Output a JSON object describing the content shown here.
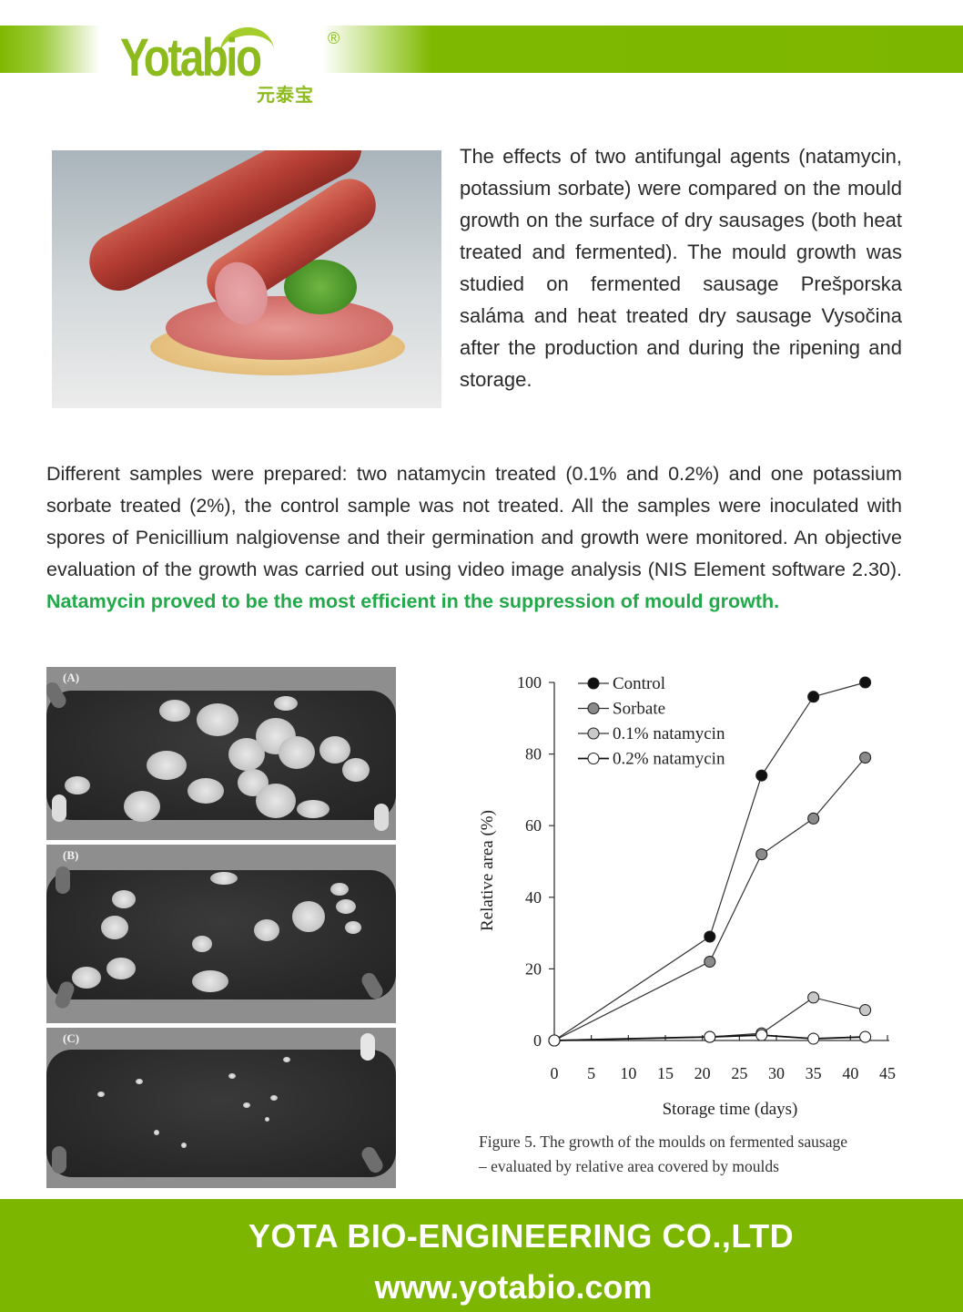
{
  "header": {
    "brand_name": "Yotabio",
    "brand_registered_mark": "®",
    "brand_chinese": "元泰宝",
    "brand_color": "#7db600"
  },
  "intro": {
    "text": "The effects of two antifungal agents (natamycin, potassium sorbate) were compared on the mould growth on the surface of dry sausages (both heat treated and fermented). The mould growth was studied on fermented sausage Prešporska saláma and heat treated dry sausage Vysočina after the production and during the ripening and storage."
  },
  "body": {
    "text": "Different samples were prepared: two natamycin treated (0.1% and 0.2%) and one potassium sorbate treated (2%), the control sample was not treated. All the samples were inoculated with spores of Penicillium nalgiovense and their germination and growth were monitored. An objective evaluation of the growth was carried out using video image analysis (NIS Element software 2.30). ",
    "highlight": "Natamycin proved to be the most efficient in the suppression of mould growth.",
    "highlight_color": "#22a94a"
  },
  "photos": [
    {
      "label": "(A)"
    },
    {
      "label": "(B)"
    },
    {
      "label": "(C)"
    }
  ],
  "chart_data": {
    "type": "line",
    "title": "",
    "xlabel": "Storage time (days)",
    "ylabel": "Relative area (%)",
    "xlim": [
      0,
      45
    ],
    "ylim": [
      0,
      100
    ],
    "x_ticks": [
      0,
      5,
      10,
      15,
      20,
      25,
      30,
      35,
      40,
      45
    ],
    "y_ticks": [
      0,
      20,
      40,
      60,
      80,
      100
    ],
    "grid": false,
    "legend_position": "upper left",
    "x": [
      0,
      21,
      28,
      35,
      42
    ],
    "series": [
      {
        "name": "Control",
        "marker_fill": "#111111",
        "values": [
          0,
          29,
          74,
          96,
          100
        ]
      },
      {
        "name": "Sorbate",
        "marker_fill": "#8a8a8a",
        "values": [
          0,
          22,
          52,
          62,
          79
        ]
      },
      {
        "name": "0.1% natamycin",
        "marker_fill": "#c8c8c8",
        "values": [
          0,
          1,
          2,
          12,
          8.5
        ]
      },
      {
        "name": "0.2% natamycin",
        "marker_fill": "#ffffff",
        "values": [
          0,
          1,
          1.5,
          0.5,
          1
        ]
      }
    ],
    "caption_line1": "Figure 5. The growth of the moulds on fermented sausage",
    "caption_line2": "– evaluated by relative area covered by moulds"
  },
  "footer": {
    "company": "YOTA BIO-ENGINEERING CO.,LTD",
    "website": "www.yotabio.com"
  }
}
